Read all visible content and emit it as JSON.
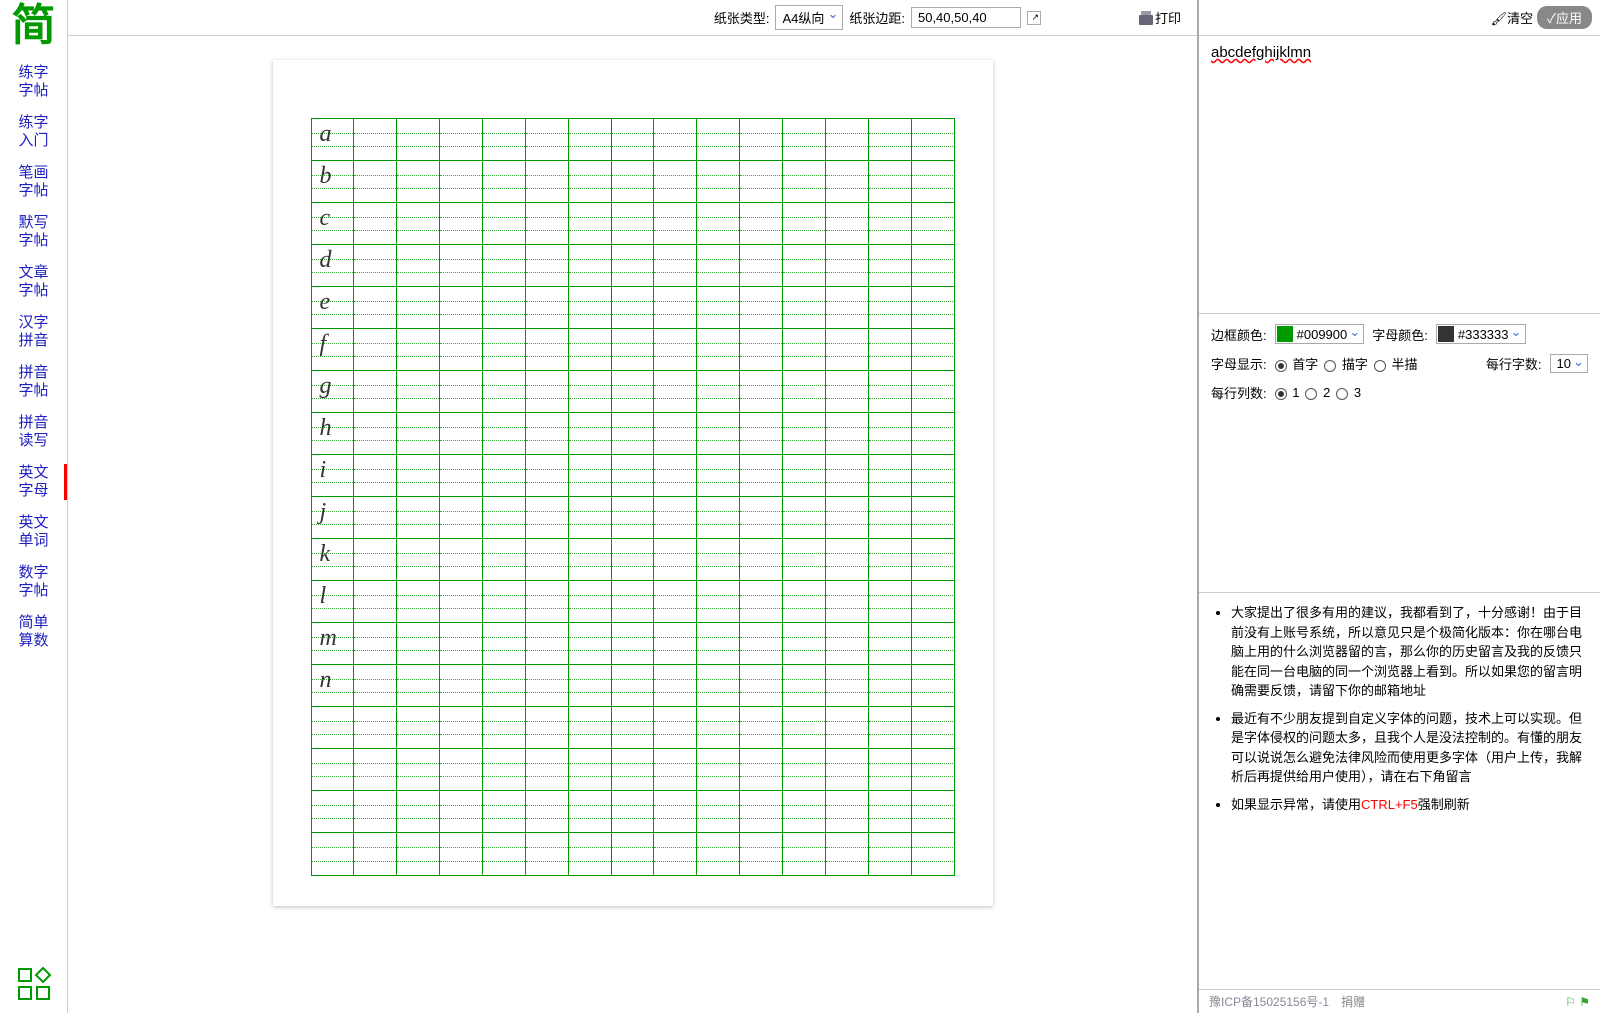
{
  "logo": {
    "text": "简",
    "color": "#009900"
  },
  "nav": {
    "items": [
      {
        "l1": "练字",
        "l2": "字帖"
      },
      {
        "l1": "练字",
        "l2": "入门"
      },
      {
        "l1": "笔画",
        "l2": "字帖"
      },
      {
        "l1": "默写",
        "l2": "字帖"
      },
      {
        "l1": "文章",
        "l2": "字帖"
      },
      {
        "l1": "汉字",
        "l2": "拼音"
      },
      {
        "l1": "拼音",
        "l2": "字帖"
      },
      {
        "l1": "拼音",
        "l2": "读写"
      },
      {
        "l1": "英文",
        "l2": "字母"
      },
      {
        "l1": "英文",
        "l2": "单词"
      },
      {
        "l1": "数字",
        "l2": "字帖"
      },
      {
        "l1": "简单",
        "l2": "算数"
      }
    ],
    "activeIndex": 8
  },
  "toolbar": {
    "paperTypeLabel": "纸张类型:",
    "paperTypeValue": "A4纵向",
    "marginLabel": "纸张边距:",
    "marginValue": "50,40,50,40",
    "printLabel": "打印"
  },
  "rtoolbar": {
    "clearLabel": "清空",
    "applyLabel": "应用"
  },
  "input": {
    "text": "abcdefghijklmn"
  },
  "controls": {
    "borderColorLabel": "边框颜色:",
    "borderColorValue": "#009900",
    "letterColorLabel": "字母颜色:",
    "letterColorValue": "#333333",
    "letterDisplayLabel": "字母显示:",
    "displayOptions": [
      "首字",
      "描字",
      "半描"
    ],
    "displaySelected": 0,
    "perRowCharsLabel": "每行字数:",
    "perRowCharsValue": "10",
    "perRowColsLabel": "每行列数:",
    "colOptions": [
      "1",
      "2",
      "3"
    ],
    "colSelected": 0
  },
  "practice": {
    "columns": 15,
    "totalRows": 18,
    "letters": [
      "a",
      "b",
      "c",
      "d",
      "e",
      "f",
      "g",
      "h",
      "i",
      "j",
      "k",
      "l",
      "m",
      "n"
    ],
    "border_color": "#009900",
    "letter_color": "#333333"
  },
  "notes": {
    "items": [
      {
        "text": "大家提出了很多有用的建议，我都看到了，十分感谢！由于目前没有上账号系统，所以意见只是个极简化版本：你在哪台电脑上用的什么浏览器留的言，那么你的历史留言及我的反馈只能在同一台电脑的同一个浏览器上看到。所以如果您的留言明确需要反馈，请留下你的邮箱地址"
      },
      {
        "text": "最近有不少朋友提到自定义字体的问题，技术上可以实现。但是字体侵权的问题太多，且我个人是没法控制的。有懂的朋友可以说说怎么避免法律风险而使用更多字体（用户上传，我解析后再提供给用户使用），请在右下角留言"
      },
      {
        "prefix": "如果显示异常，请使用",
        "highlight": "CTRL+F5",
        "suffix": "强制刷新"
      }
    ]
  },
  "footer": {
    "icp": "豫ICP备15025156号-1",
    "donate": "捐赠"
  }
}
